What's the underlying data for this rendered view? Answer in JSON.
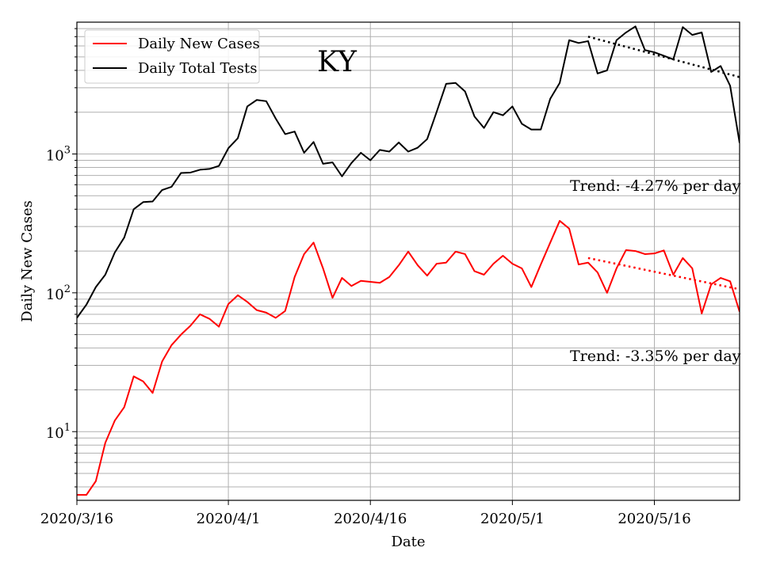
{
  "chart_data": {
    "type": "line",
    "title": "KY",
    "xlabel": "Date",
    "ylabel": "Daily New Cases",
    "yscale": "log",
    "ylim": [
      3.2,
      8900
    ],
    "xlim": [
      "2020-03-16",
      "2020-05-25"
    ],
    "grid": true,
    "legend_position": "top-left",
    "x_ticks": [
      {
        "date": "2020-03-16",
        "label": "2020/3/16"
      },
      {
        "date": "2020-04-01",
        "label": "2020/4/1"
      },
      {
        "date": "2020-04-16",
        "label": "2020/4/16"
      },
      {
        "date": "2020-05-01",
        "label": "2020/5/1"
      },
      {
        "date": "2020-05-16",
        "label": "2020/5/16"
      }
    ],
    "y_ticks": [
      {
        "value": 10,
        "base": "10",
        "exp": "1"
      },
      {
        "value": 100,
        "base": "10",
        "exp": "2"
      },
      {
        "value": 1000,
        "base": "10",
        "exp": "3"
      }
    ],
    "dates": [
      "2020-03-16",
      "2020-03-17",
      "2020-03-18",
      "2020-03-19",
      "2020-03-20",
      "2020-03-21",
      "2020-03-22",
      "2020-03-23",
      "2020-03-24",
      "2020-03-25",
      "2020-03-26",
      "2020-03-27",
      "2020-03-28",
      "2020-03-29",
      "2020-03-30",
      "2020-03-31",
      "2020-04-01",
      "2020-04-02",
      "2020-04-03",
      "2020-04-04",
      "2020-04-05",
      "2020-04-06",
      "2020-04-07",
      "2020-04-08",
      "2020-04-09",
      "2020-04-10",
      "2020-04-11",
      "2020-04-12",
      "2020-04-13",
      "2020-04-14",
      "2020-04-15",
      "2020-04-16",
      "2020-04-17",
      "2020-04-18",
      "2020-04-19",
      "2020-04-20",
      "2020-04-21",
      "2020-04-22",
      "2020-04-23",
      "2020-04-24",
      "2020-04-25",
      "2020-04-26",
      "2020-04-27",
      "2020-04-28",
      "2020-04-29",
      "2020-04-30",
      "2020-05-01",
      "2020-05-02",
      "2020-05-03",
      "2020-05-04",
      "2020-05-05",
      "2020-05-06",
      "2020-05-07",
      "2020-05-08",
      "2020-05-09",
      "2020-05-10",
      "2020-05-11",
      "2020-05-12",
      "2020-05-13",
      "2020-05-14",
      "2020-05-15",
      "2020-05-16",
      "2020-05-17",
      "2020-05-18",
      "2020-05-19",
      "2020-05-20",
      "2020-05-21",
      "2020-05-22",
      "2020-05-23",
      "2020-05-24",
      "2020-05-25"
    ],
    "series": [
      {
        "name": "Daily Total Tests",
        "color": "#000000",
        "values": [
          66,
          82,
          110,
          135,
          195,
          250,
          400,
          450,
          455,
          550,
          580,
          730,
          735,
          770,
          780,
          820,
          1100,
          1300,
          2200,
          2450,
          2400,
          1800,
          1390,
          1450,
          1020,
          1220,
          850,
          870,
          690,
          860,
          1020,
          900,
          1070,
          1040,
          1210,
          1040,
          1110,
          1280,
          2010,
          3200,
          3250,
          2820,
          1860,
          1540,
          2000,
          1900,
          2200,
          1650,
          1500,
          1500,
          2500,
          3250,
          6600,
          6300,
          6500,
          3800,
          4000,
          6600,
          7500,
          8300,
          5600,
          5400,
          5100,
          4800,
          8200,
          7200,
          7500,
          3900,
          4300,
          3100,
          1200
        ]
      },
      {
        "name": "Daily New Cases",
        "color": "#ff0000",
        "values": [
          3.5,
          3.5,
          4.4,
          8.3,
          12,
          15,
          25,
          23,
          19,
          32,
          42,
          50,
          58,
          70,
          65,
          57,
          83,
          96,
          86,
          75,
          72,
          66,
          74,
          130,
          190,
          230,
          150,
          92,
          128,
          112,
          122,
          120,
          118,
          130,
          158,
          198,
          158,
          133,
          162,
          165,
          198,
          190,
          143,
          135,
          162,
          185,
          162,
          150,
          110,
          160,
          230,
          330,
          290,
          160,
          165,
          140,
          100,
          150,
          203,
          200,
          190,
          192,
          202,
          135,
          178,
          150,
          71,
          115,
          128,
          121,
          73
        ]
      }
    ],
    "trend_lines": [
      {
        "series": "Daily Total Tests",
        "from": "2020-05-09",
        "to": "2020-05-25",
        "start_value": 7000,
        "end_value": 3580,
        "style": "dotted",
        "color": "#000000"
      },
      {
        "series": "Daily New Cases",
        "from": "2020-05-09",
        "to": "2020-05-25",
        "start_value": 178,
        "end_value": 106,
        "style": "dotted",
        "color": "#ff0000"
      }
    ],
    "annotations": [
      {
        "text": "Trend: -4.27% per day"
      },
      {
        "text": "Trend: -3.35% per day"
      }
    ]
  }
}
